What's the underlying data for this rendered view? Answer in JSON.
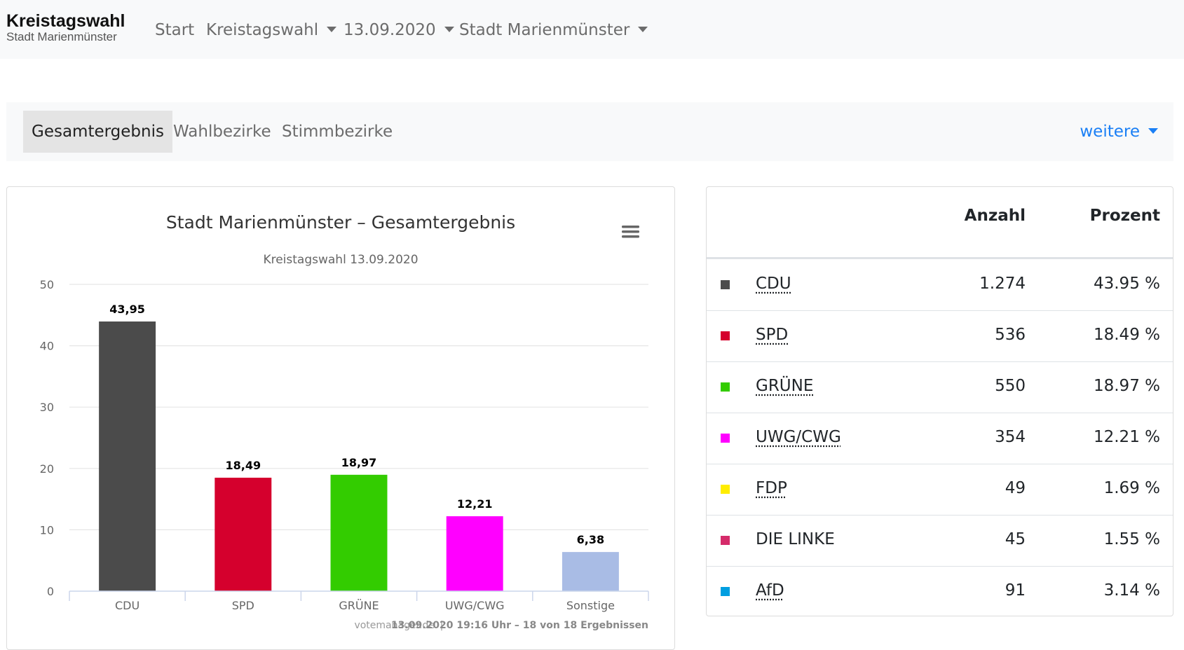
{
  "navbar": {
    "title": "Kreistagswahl",
    "subtitle": "Stadt Marienmünster",
    "items": [
      {
        "label": "Start"
      },
      {
        "label": "Kreistagswahl"
      },
      {
        "label": "13.09.2020"
      },
      {
        "label": "Stadt Marienmünster"
      }
    ]
  },
  "tabs": {
    "items": [
      {
        "label": "Gesamtergebnis"
      },
      {
        "label": "Wahlbezirke"
      },
      {
        "label": "Stimmbezirke"
      }
    ],
    "more_label": "weitere"
  },
  "chart_data": {
    "type": "bar",
    "title": "Stadt Marienmünster – Gesamtergebnis",
    "subtitle": "Kreistagswahl 13.09.2020",
    "categories": [
      "CDU",
      "SPD",
      "GRÜNE",
      "UWG/CWG",
      "Sonstige"
    ],
    "values": [
      43.95,
      18.49,
      18.97,
      12.21,
      6.38
    ],
    "data_labels": [
      "43,95",
      "18,49",
      "18,97",
      "12,21",
      "6,38"
    ],
    "colors": [
      "#4b4b4b",
      "#d5002d",
      "#33cc00",
      "#ff00ff",
      "#a9bce5"
    ],
    "ylim": [
      0,
      50
    ],
    "yticks": [
      "0",
      "10",
      "20",
      "30",
      "40",
      "50"
    ],
    "grid": true,
    "credits": "votemanager.de",
    "footer": "13.09.2020 19:16 Uhr – 18 von 18 Ergebnissen"
  },
  "results_table": {
    "headers": {
      "count": "Anzahl",
      "percent": "Prozent"
    },
    "rows": [
      {
        "party": "CDU",
        "count": "1.274",
        "percent": "43.95 %",
        "color": "#4b4b4b",
        "abbr": true
      },
      {
        "party": "SPD",
        "count": "536",
        "percent": "18.49 %",
        "color": "#d5002d",
        "abbr": true
      },
      {
        "party": "GRÜNE",
        "count": "550",
        "percent": "18.97 %",
        "color": "#33cc00",
        "abbr": true
      },
      {
        "party": "UWG/CWG",
        "count": "354",
        "percent": "12.21 %",
        "color": "#ff00ff",
        "abbr": true
      },
      {
        "party": "FDP",
        "count": "49",
        "percent": "1.69 %",
        "color": "#ffed00",
        "abbr": true
      },
      {
        "party": "DIE LINKE",
        "count": "45",
        "percent": "1.55 %",
        "color": "#d52b6a",
        "abbr": false
      },
      {
        "party": "AfD",
        "count": "91",
        "percent": "3.14 %",
        "color": "#009ee0",
        "abbr": true
      }
    ]
  }
}
